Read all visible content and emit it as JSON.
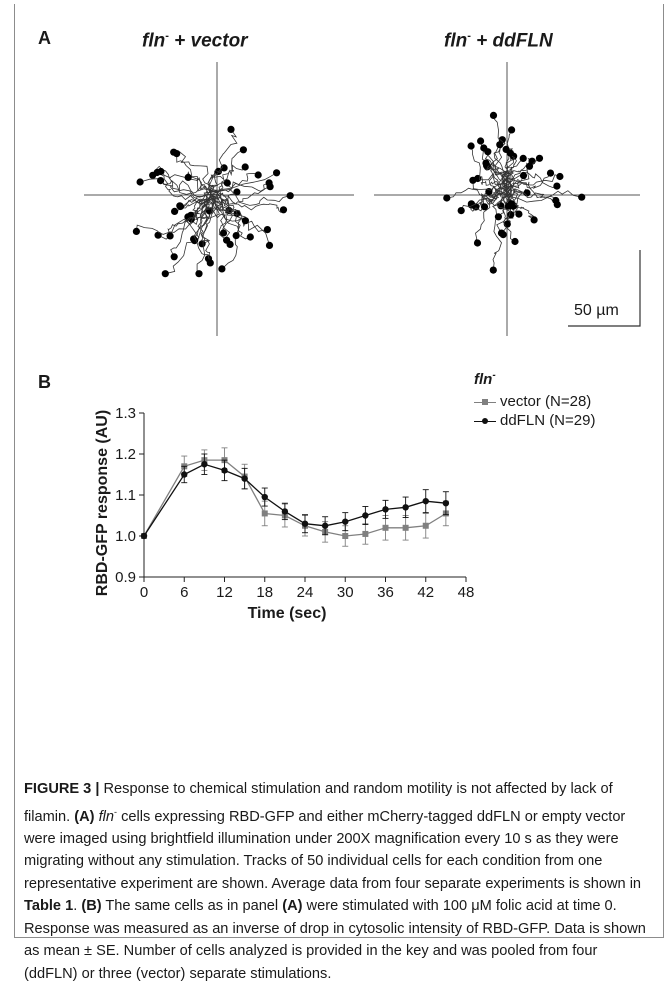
{
  "panel_a": {
    "label": "A",
    "left_title_prefix": "fln",
    "left_title_sup": "-",
    "left_title_suffix": " + vector",
    "right_title_prefix": "fln",
    "right_title_sup": "-",
    "right_title_suffix": " + ddFLN",
    "scale_bar_label": "50 µm"
  },
  "panel_b": {
    "label": "B",
    "legend_title_prefix": "fln",
    "legend_title_sup": "-",
    "legend_vector": "vector (N=28)",
    "legend_ddfln": "ddFLN (N=29)"
  },
  "colors": {
    "vector": "#808080",
    "ddfln": "#111111"
  },
  "chart_data": {
    "type": "line",
    "title": "",
    "xlabel": "Time (sec)",
    "ylabel": "RBD-GFP response (AU)",
    "xlim": [
      0,
      48
    ],
    "ylim": [
      0.9,
      1.3
    ],
    "xticks": [
      0,
      6,
      12,
      18,
      24,
      30,
      36,
      42,
      48
    ],
    "yticks": [
      0.9,
      1.0,
      1.1,
      1.2,
      1.3
    ],
    "x": [
      0,
      6,
      9,
      12,
      15,
      18,
      21,
      24,
      27,
      30,
      33,
      36,
      39,
      42,
      45
    ],
    "series": [
      {
        "name": "vector (N=28)",
        "marker": "square",
        "values": [
          1.0,
          1.17,
          1.185,
          1.185,
          1.145,
          1.055,
          1.05,
          1.025,
          1.01,
          1.0,
          1.005,
          1.02,
          1.02,
          1.025,
          1.055
        ],
        "errors": [
          0.0,
          0.025,
          0.025,
          0.03,
          0.03,
          0.03,
          0.028,
          0.025,
          0.025,
          0.025,
          0.025,
          0.03,
          0.03,
          0.03,
          0.03
        ]
      },
      {
        "name": "ddFLN (N=29)",
        "marker": "circle",
        "values": [
          1.0,
          1.15,
          1.175,
          1.16,
          1.14,
          1.095,
          1.06,
          1.03,
          1.025,
          1.035,
          1.05,
          1.065,
          1.07,
          1.085,
          1.08
        ],
        "errors": [
          0.0,
          0.02,
          0.025,
          0.025,
          0.025,
          0.022,
          0.02,
          0.022,
          0.022,
          0.022,
          0.022,
          0.022,
          0.025,
          0.028,
          0.028
        ]
      }
    ]
  },
  "caption": {
    "fig_label": "FIGURE 3 |",
    "t1": " Response to chemical stimulation and random motility is not affected by lack of filamin. ",
    "ref_a1": "(A)",
    "t2_italic": " fln",
    "t2_sup": "-",
    "t3": " cells expressing RBD-GFP and either mCherry-tagged ddFLN or empty vector were imaged using brightfield illumination under 200X magnification every 10 s as they were migrating without any stimulation. Tracks of 50 individual cells for each condition from one representative experiment are shown. Average data from four separate experiments is shown in ",
    "table_ref": "Table 1",
    "t4": ". ",
    "ref_b": "(B)",
    "t5": " The same cells as in panel ",
    "ref_a2": "(A)",
    "t6": " were stimulated with 100 μM folic acid at time 0. Response was measured as an inverse of drop in cytosolic intensity of RBD-GFP. Data is shown as mean ± SE. Number of cells analyzed is provided in the key and was pooled from four (ddFLN) or three (vector) separate stimulations."
  }
}
